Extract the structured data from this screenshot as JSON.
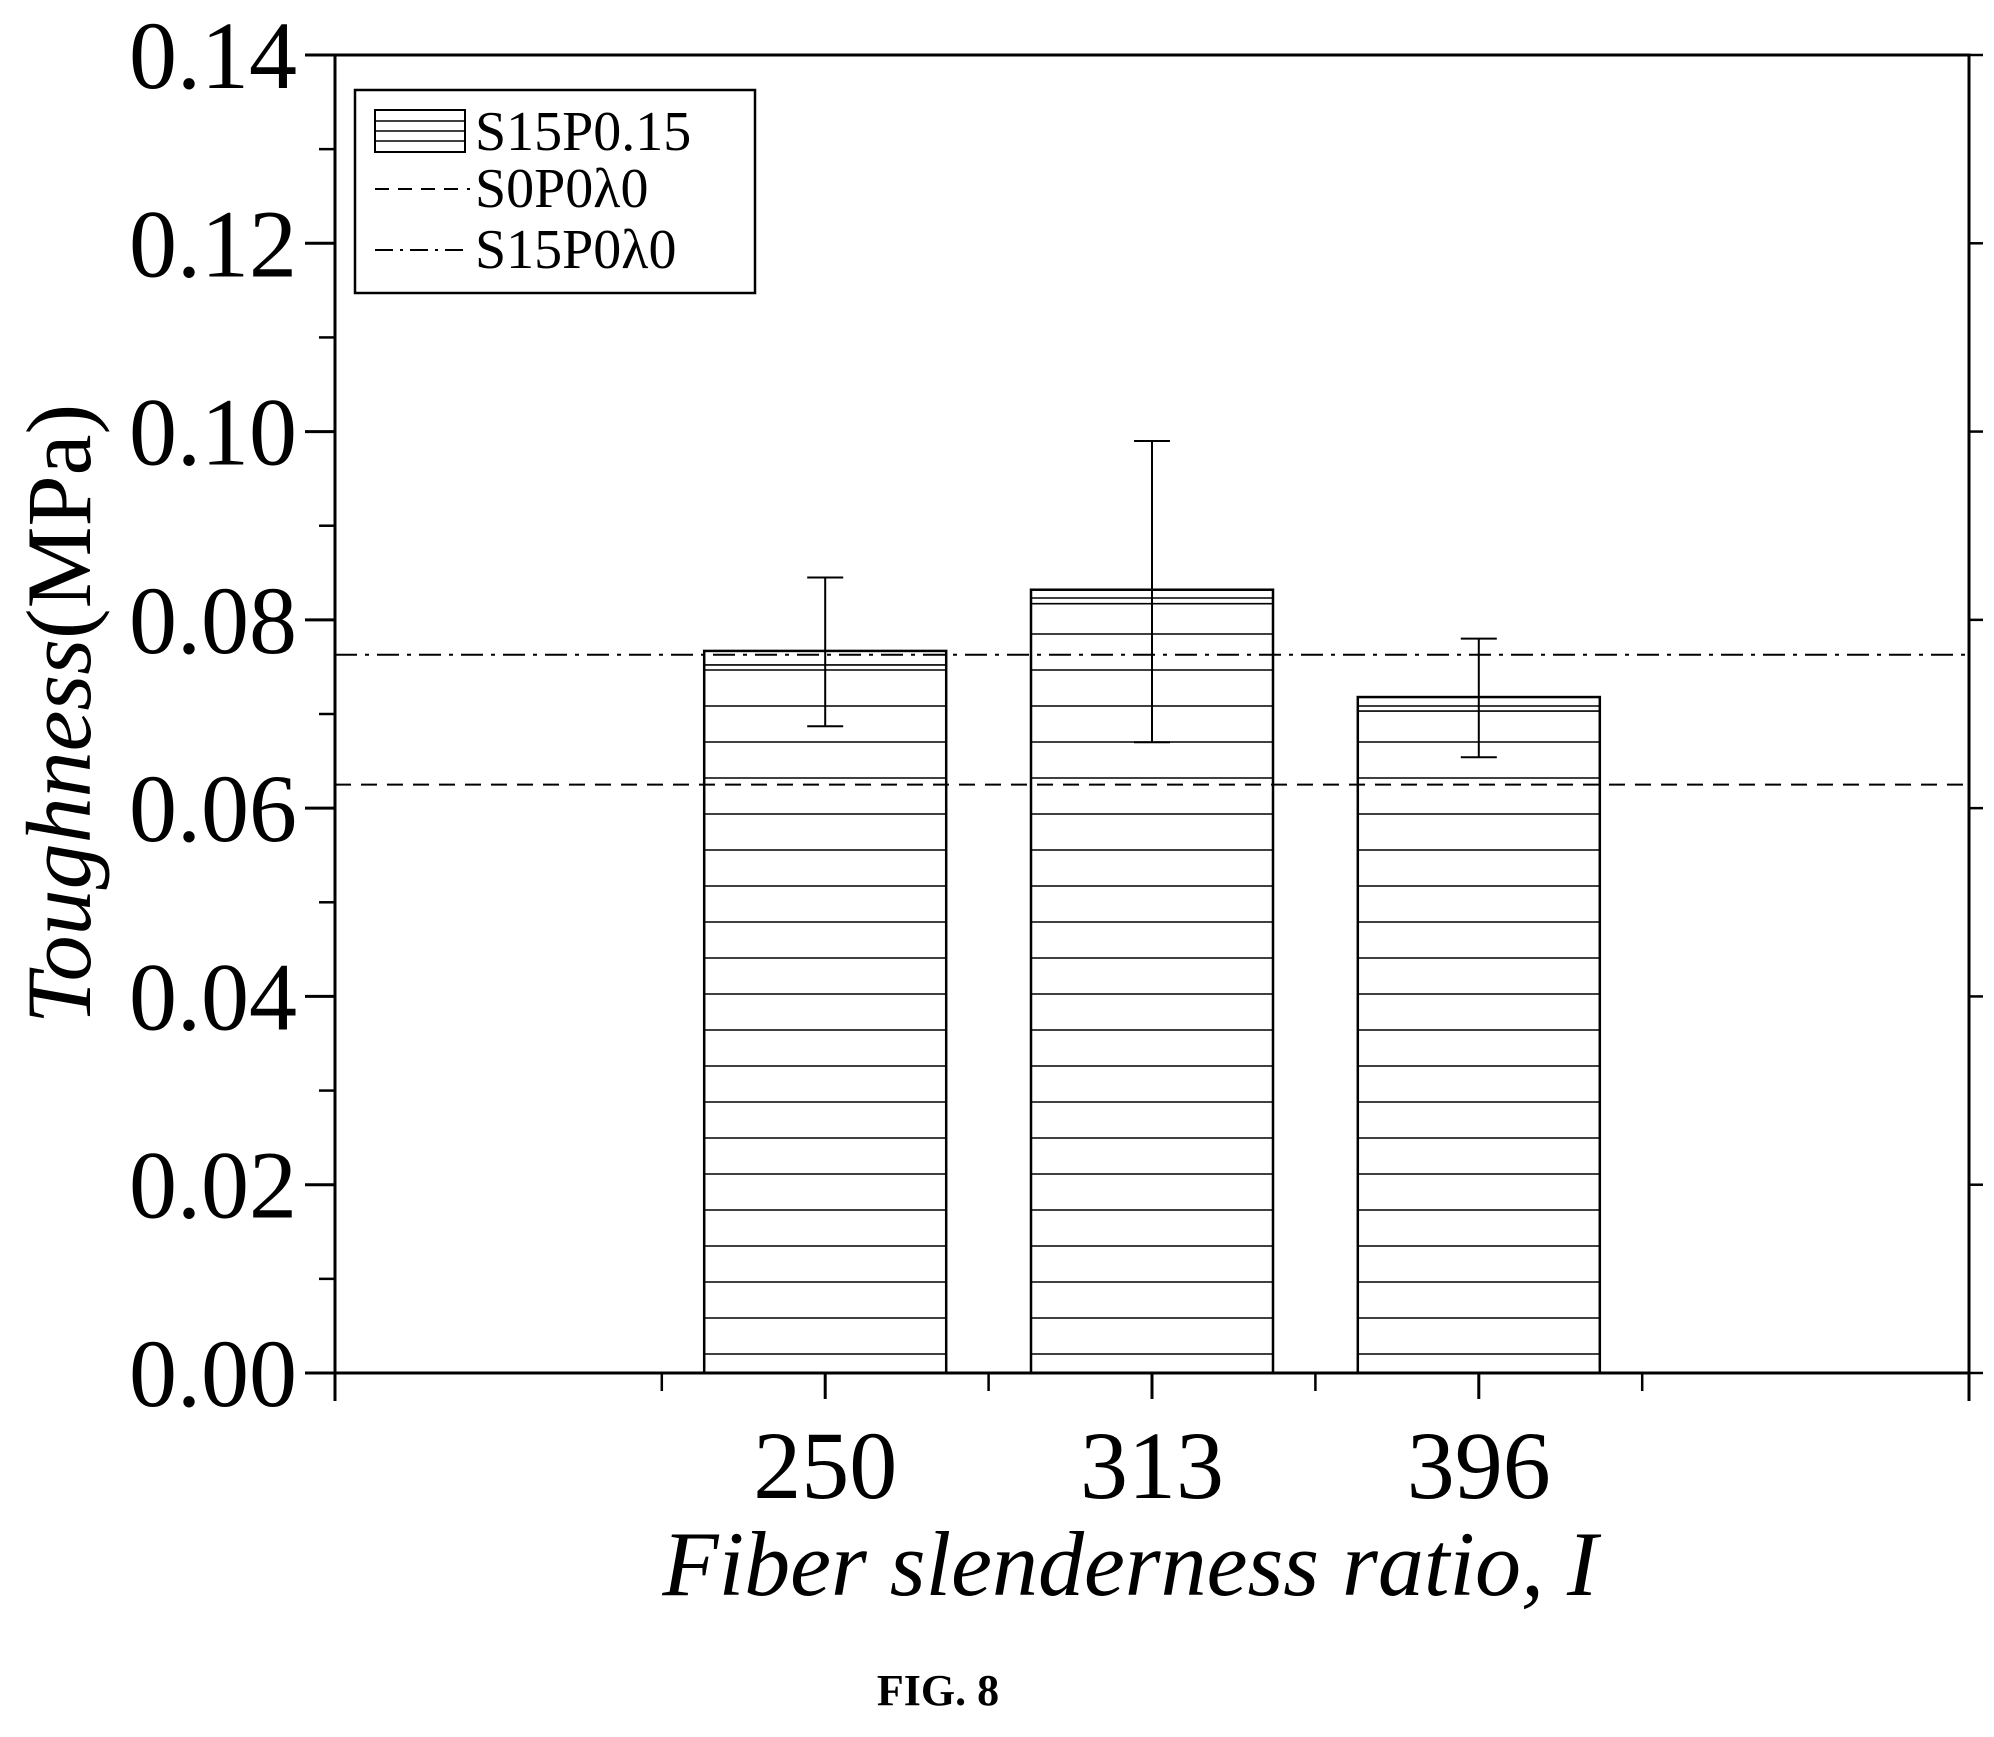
{
  "chart_data": {
    "type": "bar",
    "categories": [
      "250",
      "313",
      "396"
    ],
    "series": [
      {
        "name": "S15P0.15",
        "values": [
          0.0767,
          0.0832,
          0.0718
        ],
        "error_upper": [
          0.0845,
          0.099,
          0.078
        ],
        "error_lower": [
          0.0687,
          0.067,
          0.0654
        ]
      }
    ],
    "reference_lines": [
      {
        "name": "S0P0λ0",
        "value": 0.0625,
        "style": "dashed"
      },
      {
        "name": "S15P0λ0",
        "value": 0.0763,
        "style": "dash-dot"
      }
    ],
    "xlabel": "Fiber slenderness ratio, I",
    "ylabel_italic": "Toughness",
    "ylabel_unit": "(MPa)",
    "ylim": [
      0,
      0.14
    ],
    "yticks": [
      "0.00",
      "0.02",
      "0.04",
      "0.06",
      "0.08",
      "0.10",
      "0.12",
      "0.14"
    ],
    "legend_position": "top-left",
    "grid": false,
    "bar_pattern": "horizontal-hatch",
    "colors": {
      "line": "#000000",
      "fill": "#ffffff"
    }
  },
  "caption": "FIG. 8"
}
